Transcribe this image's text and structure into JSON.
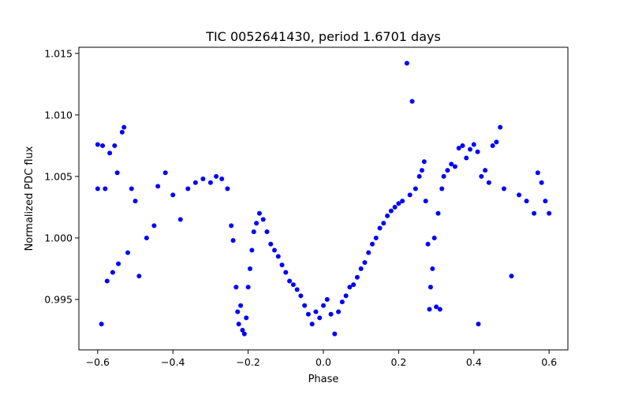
{
  "chart_data": {
    "type": "scatter",
    "title": "TIC 0052641430, period 1.6701 days",
    "xlabel": "Phase",
    "ylabel": "Normalized PDC flux",
    "xlim": [
      -0.65,
      0.65
    ],
    "ylim": [
      0.9909,
      1.0155
    ],
    "grid": false,
    "marker_color": "#0000ff",
    "xticks": [
      {
        "value": -0.6,
        "label": "−0.6"
      },
      {
        "value": -0.4,
        "label": "−0.4"
      },
      {
        "value": -0.2,
        "label": "−0.2"
      },
      {
        "value": 0.0,
        "label": "0.0"
      },
      {
        "value": 0.2,
        "label": "0.2"
      },
      {
        "value": 0.4,
        "label": "0.4"
      },
      {
        "value": 0.6,
        "label": "0.6"
      }
    ],
    "yticks": [
      {
        "value": 0.995,
        "label": "0.995"
      },
      {
        "value": 1.0,
        "label": "1.000"
      },
      {
        "value": 1.005,
        "label": "1.005"
      },
      {
        "value": 1.01,
        "label": "1.010"
      },
      {
        "value": 1.015,
        "label": "1.015"
      }
    ],
    "series": [
      {
        "points": [
          [
            -0.6,
            1.004
          ],
          [
            -0.6,
            1.0076
          ],
          [
            -0.59,
            0.993
          ],
          [
            -0.587,
            1.0075
          ],
          [
            -0.58,
            1.004
          ],
          [
            -0.575,
            0.9965
          ],
          [
            -0.568,
            1.0069
          ],
          [
            -0.56,
            0.9972
          ],
          [
            -0.555,
            1.0075
          ],
          [
            -0.548,
            1.0053
          ],
          [
            -0.545,
            0.9979
          ],
          [
            -0.535,
            1.0086
          ],
          [
            -0.53,
            1.009
          ],
          [
            -0.52,
            0.9988
          ],
          [
            -0.51,
            1.004
          ],
          [
            -0.5,
            1.003
          ],
          [
            -0.49,
            0.9969
          ],
          [
            -0.47,
            1.0
          ],
          [
            -0.45,
            1.001
          ],
          [
            -0.44,
            1.0042
          ],
          [
            -0.42,
            1.0053
          ],
          [
            -0.4,
            1.0035
          ],
          [
            -0.38,
            1.0015
          ],
          [
            -0.36,
            1.004
          ],
          [
            -0.34,
            1.0045
          ],
          [
            -0.32,
            1.0048
          ],
          [
            -0.3,
            1.0045
          ],
          [
            -0.285,
            1.005
          ],
          [
            -0.27,
            1.0048
          ],
          [
            -0.255,
            1.004
          ],
          [
            -0.245,
            1.001
          ],
          [
            -0.24,
            0.9998
          ],
          [
            -0.232,
            0.996
          ],
          [
            -0.228,
            0.994
          ],
          [
            -0.225,
            0.993
          ],
          [
            -0.22,
            0.9945
          ],
          [
            -0.215,
            0.9925
          ],
          [
            -0.21,
            0.9922
          ],
          [
            -0.205,
            0.9935
          ],
          [
            -0.2,
            0.996
          ],
          [
            -0.195,
            0.9975
          ],
          [
            -0.19,
            0.999
          ],
          [
            -0.185,
            1.0005
          ],
          [
            -0.178,
            1.0012
          ],
          [
            -0.17,
            1.002
          ],
          [
            -0.16,
            1.0015
          ],
          [
            -0.15,
            1.0005
          ],
          [
            -0.14,
            0.9995
          ],
          [
            -0.13,
            0.999
          ],
          [
            -0.12,
            0.9985
          ],
          [
            -0.11,
            0.9978
          ],
          [
            -0.1,
            0.9972
          ],
          [
            -0.09,
            0.9965
          ],
          [
            -0.08,
            0.9962
          ],
          [
            -0.07,
            0.9958
          ],
          [
            -0.06,
            0.9953
          ],
          [
            -0.05,
            0.9945
          ],
          [
            -0.04,
            0.9938
          ],
          [
            -0.03,
            0.993
          ],
          [
            -0.02,
            0.994
          ],
          [
            -0.01,
            0.9935
          ],
          [
            0.0,
            0.9945
          ],
          [
            0.01,
            0.995
          ],
          [
            0.02,
            0.9938
          ],
          [
            0.03,
            0.9922
          ],
          [
            0.04,
            0.994
          ],
          [
            0.05,
            0.9948
          ],
          [
            0.06,
            0.9953
          ],
          [
            0.07,
            0.996
          ],
          [
            0.08,
            0.9962
          ],
          [
            0.09,
            0.9968
          ],
          [
            0.1,
            0.9975
          ],
          [
            0.11,
            0.998
          ],
          [
            0.12,
            0.9988
          ],
          [
            0.13,
            0.9995
          ],
          [
            0.14,
            1.0
          ],
          [
            0.15,
            1.0008
          ],
          [
            0.16,
            1.0012
          ],
          [
            0.17,
            1.0018
          ],
          [
            0.18,
            1.0022
          ],
          [
            0.19,
            1.0025
          ],
          [
            0.2,
            1.0028
          ],
          [
            0.21,
            1.003
          ],
          [
            0.222,
            1.0142
          ],
          [
            0.23,
            1.0035
          ],
          [
            0.236,
            1.0111
          ],
          [
            0.245,
            1.004
          ],
          [
            0.255,
            1.005
          ],
          [
            0.262,
            1.0055
          ],
          [
            0.268,
            1.0062
          ],
          [
            0.272,
            1.003
          ],
          [
            0.278,
            0.9995
          ],
          [
            0.282,
            0.9942
          ],
          [
            0.285,
            0.996
          ],
          [
            0.29,
            0.9975
          ],
          [
            0.295,
            1.0
          ],
          [
            0.3,
            0.9944
          ],
          [
            0.305,
            1.002
          ],
          [
            0.31,
            0.9942
          ],
          [
            0.315,
            1.004
          ],
          [
            0.32,
            1.005
          ],
          [
            0.33,
            1.0055
          ],
          [
            0.34,
            1.006
          ],
          [
            0.35,
            1.0058
          ],
          [
            0.36,
            1.0073
          ],
          [
            0.37,
            1.0075
          ],
          [
            0.38,
            1.0065
          ],
          [
            0.39,
            1.0072
          ],
          [
            0.4,
            1.0076
          ],
          [
            0.41,
            1.007
          ],
          [
            0.412,
            0.993
          ],
          [
            0.42,
            1.005
          ],
          [
            0.43,
            1.0055
          ],
          [
            0.44,
            1.0045
          ],
          [
            0.45,
            1.0075
          ],
          [
            0.46,
            1.0078
          ],
          [
            0.47,
            1.009
          ],
          [
            0.48,
            1.004
          ],
          [
            0.5,
            0.9969
          ],
          [
            0.52,
            1.0035
          ],
          [
            0.54,
            1.003
          ],
          [
            0.56,
            1.002
          ],
          [
            0.57,
            1.0053
          ],
          [
            0.58,
            1.0045
          ],
          [
            0.59,
            1.003
          ],
          [
            0.6,
            1.002
          ]
        ]
      }
    ]
  }
}
